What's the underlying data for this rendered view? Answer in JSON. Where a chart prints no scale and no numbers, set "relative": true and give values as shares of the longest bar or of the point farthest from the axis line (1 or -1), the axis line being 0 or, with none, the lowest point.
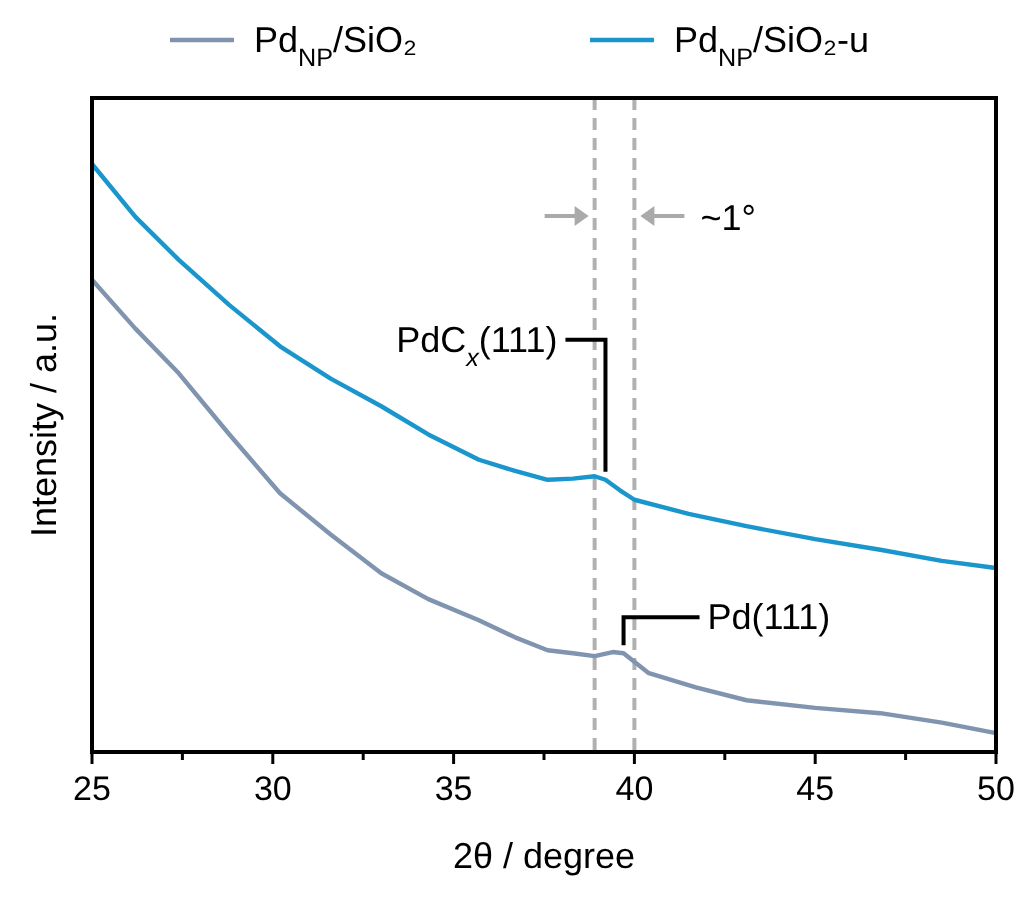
{
  "chart_data": {
    "type": "line",
    "relative": true,
    "xlabel": "2θ / degree",
    "ylabel": "Intensity / a.u.",
    "xlim": [
      25,
      50
    ],
    "xticks": [
      25,
      {
        "value": 27.5,
        "label": null
      },
      30,
      {
        "value": 32.5,
        "label": null
      },
      35,
      {
        "value": 37.5,
        "label": null
      },
      40,
      {
        "value": 42.5,
        "label": null
      },
      45,
      {
        "value": 47.5,
        "label": null
      },
      50
    ],
    "tick_labels": "x",
    "legend": "top",
    "grid": false,
    "line_style": "solid",
    "marker": "none",
    "series": [
      {
        "name": "Pd$_{NP}$/SiO₂",
        "color": "#8094b0",
        "x": [
          25,
          26.2,
          27.4,
          28.8,
          30.2,
          31.6,
          33,
          34.3,
          35.7,
          36.7,
          37.6,
          38.3,
          38.9,
          39.4,
          39.7,
          40.4,
          41.7,
          43.1,
          45,
          46.8,
          48.5,
          50
        ],
        "values": [
          0.803,
          0.72,
          0.644,
          0.54,
          0.44,
          0.37,
          0.304,
          0.26,
          0.224,
          0.195,
          0.173,
          0.168,
          0.163,
          0.17,
          0.168,
          0.134,
          0.11,
          0.088,
          0.075,
          0.066,
          0.05,
          0.032
        ]
      },
      {
        "name": "Pd$_{NP}$/SiO₂-u",
        "color": "#1a96cc",
        "x": [
          25,
          26.2,
          27.4,
          28.8,
          30.2,
          31.6,
          33,
          34.3,
          35.7,
          36.7,
          37.6,
          38.3,
          38.9,
          39.2,
          39.6,
          40,
          41.5,
          43.1,
          45,
          46.8,
          48.5,
          50
        ],
        "values": [
          1.0,
          0.91,
          0.837,
          0.76,
          0.69,
          0.635,
          0.588,
          0.54,
          0.497,
          0.478,
          0.463,
          0.465,
          0.469,
          0.463,
          0.445,
          0.429,
          0.405,
          0.384,
          0.362,
          0.344,
          0.325,
          0.313
        ]
      }
    ],
    "ref_lines": [
      {
        "axis": "x",
        "value": 38.9,
        "color": "#b0b0b0",
        "line_style": "dashed"
      },
      {
        "axis": "x",
        "value": 40,
        "color": "#b0b0b0",
        "line_style": "dashed"
      }
    ],
    "annotations": [
      {
        "text": "PdC$_{x}$(111)",
        "x": 39.2,
        "y": 0.463
      },
      {
        "text": "Pd(111)",
        "x": 39.7,
        "y": 0.168
      },
      "~1°"
    ]
  }
}
